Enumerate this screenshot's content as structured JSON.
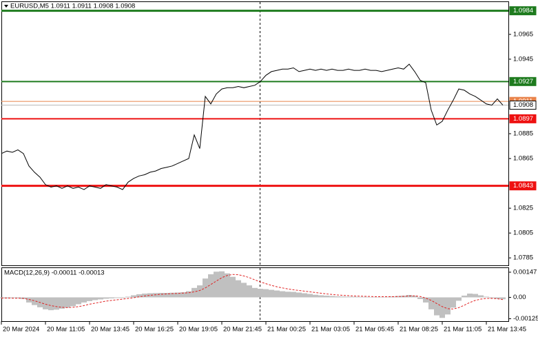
{
  "chart_data": [
    {
      "type": "line",
      "title": "EURUSD,M5  1.0911 1.0911 1.0908 1.0908",
      "color": "#000000",
      "values": [
        1.0869,
        1.0871,
        1.087,
        1.0872,
        1.0869,
        1.0859,
        1.0854,
        1.085,
        1.0844,
        1.0842,
        1.0843,
        1.0841,
        1.0843,
        1.0841,
        1.0842,
        1.084,
        1.0843,
        1.0842,
        1.0841,
        1.0844,
        1.0843,
        1.0842,
        1.084,
        1.0846,
        1.0849,
        1.0851,
        1.0852,
        1.0854,
        1.0855,
        1.0857,
        1.0858,
        1.0859,
        1.0861,
        1.0863,
        1.0865,
        1.0884,
        1.0873,
        1.0915,
        1.0909,
        1.0917,
        1.0921,
        1.0922,
        1.0922,
        1.0923,
        1.0922,
        1.0923,
        1.0924,
        1.0927,
        1.0932,
        1.0935,
        1.0936,
        1.0937,
        1.0937,
        1.0938,
        1.0935,
        1.0936,
        1.0937,
        1.0936,
        1.0937,
        1.0936,
        1.0937,
        1.0936,
        1.0936,
        1.0937,
        1.0936,
        1.0936,
        1.0937,
        1.0936,
        1.0936,
        1.0935,
        1.0936,
        1.0937,
        1.0938,
        1.0937,
        1.0941,
        1.0935,
        1.0928,
        1.0926,
        1.0904,
        1.0892,
        1.0895,
        1.0904,
        1.0912,
        1.0921,
        1.092,
        1.0917,
        1.0915,
        1.0912,
        1.0909,
        1.0908,
        1.0913,
        1.0908
      ],
      "xlim": [
        0,
        92
      ],
      "ylim": [
        1.0779,
        1.0991
      ],
      "yticks": [
        1.0965,
        1.0945,
        1.0885,
        1.0865,
        1.0825,
        1.0805,
        1.0785
      ],
      "levels": [
        {
          "value": 1.0984,
          "color": "#1e7b1e",
          "style": "thick",
          "label_fill": "#1e7b1e",
          "label_text": "#ffffff"
        },
        {
          "value": 1.0927,
          "color": "#1e7b1e",
          "style": "normal",
          "label_fill": "#1e7b1e",
          "label_text": "#ffffff"
        },
        {
          "value": 1.0911,
          "color": "#e8834a",
          "style": "thin",
          "label_fill": "#e8834a",
          "label_text": "#ffffff"
        },
        {
          "value": 1.0908,
          "color": "#b8b8b8",
          "style": "thin",
          "label_fill": "#ffffff",
          "label_text": "#000000"
        },
        {
          "value": 1.0897,
          "color": "#ee1111",
          "style": "normal",
          "label_fill": "#ee1111",
          "label_text": "#ffffff"
        },
        {
          "value": 1.0843,
          "color": "#ee1111",
          "style": "thick",
          "label_fill": "#ee1111",
          "label_text": "#ffffff"
        }
      ]
    },
    {
      "type": "macd",
      "title": "MACD(12,26,9) -0.00011 -0.00013",
      "histogram": {
        "color": "#c0c0c0",
        "values": [
          -5e-05,
          -6e-05,
          -4e-05,
          -5e-05,
          -0.0001,
          -0.0003,
          -0.00045,
          -0.00058,
          -0.0007,
          -0.00075,
          -0.00072,
          -0.00066,
          -0.0006,
          -0.00052,
          -0.0004,
          -0.0003,
          -0.00022,
          -0.00016,
          -0.00012,
          -8e-05,
          -6e-05,
          -4e-05,
          -4e-05,
          4e-05,
          0.00012,
          0.00018,
          0.00022,
          0.00024,
          0.00025,
          0.00026,
          0.00026,
          0.00027,
          0.00028,
          0.0003,
          0.00036,
          0.00055,
          0.0007,
          0.0011,
          0.00135,
          0.0015,
          0.00152,
          0.0014,
          0.0012,
          0.001,
          0.00085,
          0.0007,
          0.00055,
          0.0005,
          0.00048,
          0.00044,
          0.0004,
          0.00036,
          0.00033,
          0.00032,
          0.00028,
          0.00024,
          0.0002,
          0.00015,
          0.00012,
          0.0001,
          8e-05,
          6e-05,
          5e-05,
          4e-05,
          4e-05,
          3e-05,
          3e-05,
          2e-05,
          2e-05,
          2e-05,
          3e-05,
          5e-05,
          8e-05,
          0.0001,
          0.00014,
          0.0001,
          -0.0001,
          -0.0003,
          -0.0007,
          -0.00105,
          -0.0012,
          -0.001,
          -0.0006,
          -0.0002,
          0.0001,
          0.00022,
          0.0002,
          0.00012,
          4e-05,
          -4e-05,
          -8e-05,
          -0.00011
        ]
      },
      "signal": {
        "color": "#e02020",
        "values": [
          -4e-05,
          -4e-05,
          -5e-05,
          -5e-05,
          -6e-05,
          -0.00012,
          -0.0002,
          -0.0003,
          -0.0004,
          -0.00048,
          -0.00054,
          -0.00058,
          -0.0006,
          -0.00058,
          -0.00054,
          -0.00048,
          -0.0004,
          -0.00034,
          -0.00028,
          -0.00022,
          -0.00018,
          -0.00014,
          -0.0001,
          -6e-05,
          -2e-05,
          3e-05,
          8e-05,
          0.00012,
          0.00015,
          0.00018,
          0.0002,
          0.00022,
          0.00023,
          0.00025,
          0.00027,
          0.00032,
          0.0004,
          0.00055,
          0.00075,
          0.00095,
          0.00115,
          0.00128,
          0.00134,
          0.00132,
          0.00125,
          0.00115,
          0.00102,
          0.0009,
          0.0008,
          0.0007,
          0.00062,
          0.00055,
          0.00049,
          0.00044,
          0.0004,
          0.00036,
          0.00032,
          0.00028,
          0.00024,
          0.0002,
          0.00017,
          0.00014,
          0.00012,
          0.0001,
          8e-05,
          7e-05,
          6e-05,
          5e-05,
          4e-05,
          4e-05,
          4e-05,
          4e-05,
          5e-05,
          6e-05,
          8e-05,
          9e-05,
          5e-05,
          -4e-05,
          -0.00018,
          -0.00036,
          -0.00054,
          -0.00066,
          -0.00068,
          -0.0006,
          -0.00046,
          -0.0003,
          -0.00018,
          -0.0001,
          -6e-05,
          -6e-05,
          -8e-05,
          -0.00013
        ]
      },
      "xlim": [
        0,
        92
      ],
      "ylim": [
        -0.00139,
        0.00171
      ],
      "yticks": [
        0.00147,
        {
          "value": 0,
          "label": "0.00"
        },
        -0.00125
      ],
      "xticks": [
        {
          "value": 0,
          "label": "20 Mar 2024"
        },
        {
          "value": 8,
          "label": "20 Mar 11:05"
        },
        {
          "value": 16,
          "label": "20 Mar 13:45"
        },
        {
          "value": 24,
          "label": "20 Mar 16:25"
        },
        {
          "value": 32,
          "label": "20 Mar 19:05"
        },
        {
          "value": 40,
          "label": "20 Mar 21:45"
        },
        {
          "value": 48,
          "label": "21 Mar 00:25"
        },
        {
          "value": 56,
          "label": "21 Mar 03:05"
        },
        {
          "value": 64,
          "label": "21 Mar 05:45"
        },
        {
          "value": 72,
          "label": "21 Mar 08:25"
        },
        {
          "value": 80,
          "label": "21 Mar 11:05"
        },
        {
          "value": 88,
          "label": "21 Mar 13:45"
        }
      ]
    }
  ]
}
